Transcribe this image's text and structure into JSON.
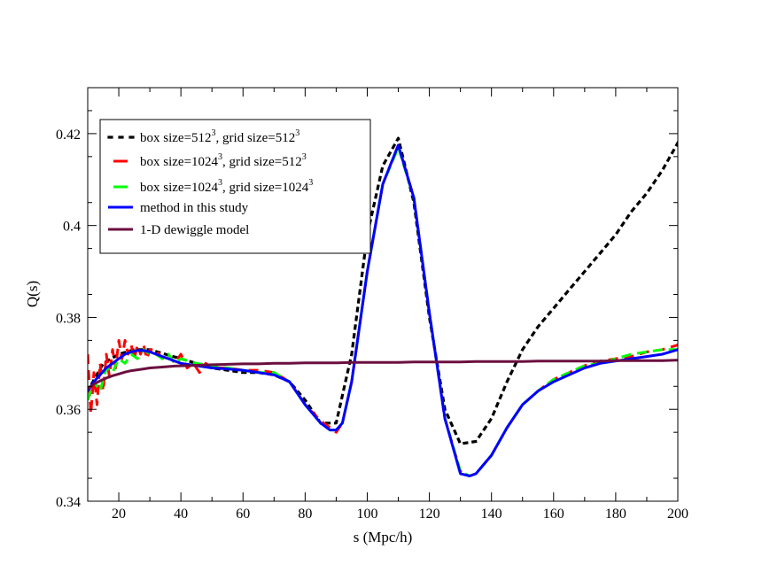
{
  "chart_data": {
    "type": "line",
    "title": "",
    "xlabel": "s (Mpc/h)",
    "ylabel": "Q(s)",
    "xlim": [
      10,
      200
    ],
    "ylim": [
      0.34,
      0.43
    ],
    "grid": false,
    "legend_position": "top-left",
    "x_ticks": [
      20,
      40,
      60,
      80,
      100,
      120,
      140,
      160,
      180,
      200
    ],
    "x_tick_labels": [
      "20",
      "40",
      "60",
      "80",
      "100",
      "120",
      "140",
      "160",
      "180",
      "200"
    ],
    "y_ticks": [
      0.34,
      0.36,
      0.38,
      0.4,
      0.42
    ],
    "y_tick_labels": [
      "0.34",
      "0.36",
      "0.38",
      "0.4",
      "0.42"
    ],
    "legend": [
      {
        "label": "box size=512",
        "sup1": "3",
        "mid": ", grid size=512",
        "sup2": "3"
      },
      {
        "label": "box size=1024",
        "sup1": "3",
        "mid": ", grid size=512",
        "sup2": "3"
      },
      {
        "label": "box size=1024",
        "sup1": "3",
        "mid": ", grid size=1024",
        "sup2": "3"
      },
      {
        "label": "method in this study",
        "sup1": "",
        "mid": "",
        "sup2": ""
      },
      {
        "label": "1-D dewiggle model",
        "sup1": "",
        "mid": "",
        "sup2": ""
      }
    ],
    "series": [
      {
        "name": "box size=512^3, grid size=512^3",
        "color": "#000000",
        "style": "dotted",
        "x": [
          10,
          15,
          20,
          25,
          30,
          35,
          40,
          45,
          50,
          55,
          60,
          65,
          70,
          75,
          80,
          85,
          90,
          95,
          100,
          105,
          110,
          115,
          120,
          125,
          130,
          135,
          140,
          145,
          150,
          155,
          160,
          165,
          170,
          175,
          180,
          185,
          190,
          195,
          200
        ],
        "y": [
          0.364,
          0.37,
          0.372,
          0.373,
          0.373,
          0.372,
          0.371,
          0.37,
          0.369,
          0.3685,
          0.368,
          0.368,
          0.3675,
          0.366,
          0.362,
          0.357,
          0.357,
          0.372,
          0.398,
          0.413,
          0.419,
          0.405,
          0.38,
          0.36,
          0.3525,
          0.353,
          0.358,
          0.366,
          0.373,
          0.378,
          0.382,
          0.386,
          0.39,
          0.394,
          0.398,
          0.403,
          0.407,
          0.412,
          0.418
        ]
      },
      {
        "name": "box size=1024^3, grid size=512^3",
        "color": "#ff0000",
        "style": "dashed",
        "x": [
          10,
          11,
          12,
          13,
          14,
          15,
          16,
          17,
          18,
          19,
          20,
          21,
          22,
          23,
          24,
          25,
          26,
          27,
          28,
          29,
          30,
          32,
          34,
          36,
          38,
          40,
          42,
          44,
          46,
          48,
          50,
          55,
          60,
          65,
          70,
          75,
          80,
          85,
          88,
          90,
          92,
          95,
          100,
          105,
          110,
          115,
          120,
          125,
          130,
          133,
          135,
          140,
          145,
          150,
          155,
          160,
          165,
          170,
          175,
          180,
          185,
          190,
          195,
          200
        ],
        "y": [
          0.372,
          0.359,
          0.368,
          0.361,
          0.37,
          0.364,
          0.372,
          0.367,
          0.373,
          0.369,
          0.375,
          0.371,
          0.375,
          0.372,
          0.374,
          0.371,
          0.374,
          0.372,
          0.374,
          0.371,
          0.373,
          0.373,
          0.371,
          0.372,
          0.37,
          0.372,
          0.369,
          0.37,
          0.368,
          0.37,
          0.369,
          0.369,
          0.3685,
          0.3685,
          0.368,
          0.366,
          0.361,
          0.3575,
          0.356,
          0.355,
          0.357,
          0.366,
          0.39,
          0.409,
          0.4175,
          0.406,
          0.381,
          0.358,
          0.3465,
          0.3455,
          0.346,
          0.35,
          0.356,
          0.361,
          0.364,
          0.3665,
          0.368,
          0.3695,
          0.3705,
          0.371,
          0.3715,
          0.3725,
          0.373,
          0.374
        ]
      },
      {
        "name": "box size=1024^3, grid size=1024^3",
        "color": "#00ff00",
        "style": "dashed",
        "x": [
          10,
          12,
          14,
          16,
          18,
          20,
          22,
          24,
          26,
          28,
          30,
          32,
          34,
          36,
          38,
          40,
          45,
          50,
          55,
          60,
          65,
          70,
          75,
          80,
          85,
          88,
          90,
          92,
          95,
          100,
          105,
          110,
          115,
          120,
          125,
          130,
          133,
          135,
          140,
          145,
          150,
          155,
          160,
          165,
          170,
          175,
          180,
          185,
          190,
          195,
          200
        ],
        "y": [
          0.362,
          0.366,
          0.364,
          0.369,
          0.368,
          0.371,
          0.37,
          0.372,
          0.371,
          0.373,
          0.372,
          0.372,
          0.371,
          0.372,
          0.37,
          0.371,
          0.37,
          0.3695,
          0.369,
          0.3685,
          0.368,
          0.368,
          0.366,
          0.361,
          0.357,
          0.3555,
          0.3555,
          0.357,
          0.366,
          0.39,
          0.409,
          0.417,
          0.406,
          0.381,
          0.358,
          0.3465,
          0.3455,
          0.346,
          0.35,
          0.356,
          0.361,
          0.364,
          0.3665,
          0.368,
          0.3695,
          0.37,
          0.371,
          0.372,
          0.3725,
          0.373,
          0.373
        ]
      },
      {
        "name": "method in this study",
        "color": "#0000ff",
        "style": "solid",
        "x": [
          10,
          12,
          14,
          16,
          18,
          20,
          22,
          24,
          26,
          28,
          30,
          32,
          34,
          36,
          38,
          40,
          45,
          50,
          55,
          60,
          65,
          70,
          75,
          80,
          85,
          88,
          90,
          92,
          95,
          100,
          105,
          110,
          115,
          120,
          125,
          130,
          133,
          135,
          140,
          145,
          150,
          155,
          160,
          165,
          170,
          175,
          180,
          185,
          190,
          195,
          200
        ],
        "y": [
          0.364,
          0.366,
          0.3675,
          0.369,
          0.37,
          0.371,
          0.372,
          0.3725,
          0.3728,
          0.3728,
          0.3725,
          0.372,
          0.3715,
          0.371,
          0.3705,
          0.37,
          0.3695,
          0.369,
          0.3688,
          0.3685,
          0.368,
          0.3675,
          0.366,
          0.361,
          0.357,
          0.3555,
          0.3555,
          0.357,
          0.366,
          0.39,
          0.409,
          0.4175,
          0.406,
          0.381,
          0.358,
          0.346,
          0.3455,
          0.346,
          0.35,
          0.356,
          0.361,
          0.364,
          0.366,
          0.3675,
          0.369,
          0.37,
          0.3705,
          0.371,
          0.3715,
          0.372,
          0.373
        ]
      },
      {
        "name": "1-D dewiggle model",
        "color": "#6b0f3f",
        "style": "solid",
        "x": [
          10,
          12,
          14,
          16,
          18,
          20,
          22,
          24,
          26,
          28,
          30,
          34,
          38,
          42,
          46,
          50,
          55,
          60,
          65,
          70,
          75,
          80,
          85,
          90,
          95,
          100,
          105,
          110,
          115,
          120,
          125,
          130,
          135,
          140,
          145,
          150,
          155,
          160,
          165,
          170,
          175,
          180,
          185,
          190,
          195,
          200
        ],
        "y": [
          0.3645,
          0.3655,
          0.3662,
          0.3668,
          0.3673,
          0.3677,
          0.3681,
          0.3684,
          0.3686,
          0.3688,
          0.369,
          0.3692,
          0.3694,
          0.3695,
          0.3696,
          0.3697,
          0.3698,
          0.3699,
          0.3699,
          0.37,
          0.37,
          0.3701,
          0.3701,
          0.3701,
          0.3702,
          0.3702,
          0.3702,
          0.3702,
          0.3703,
          0.3703,
          0.3703,
          0.3703,
          0.3704,
          0.3704,
          0.3704,
          0.3704,
          0.3705,
          0.3705,
          0.3705,
          0.3705,
          0.3705,
          0.3706,
          0.3706,
          0.3706,
          0.3706,
          0.3707
        ]
      }
    ]
  }
}
